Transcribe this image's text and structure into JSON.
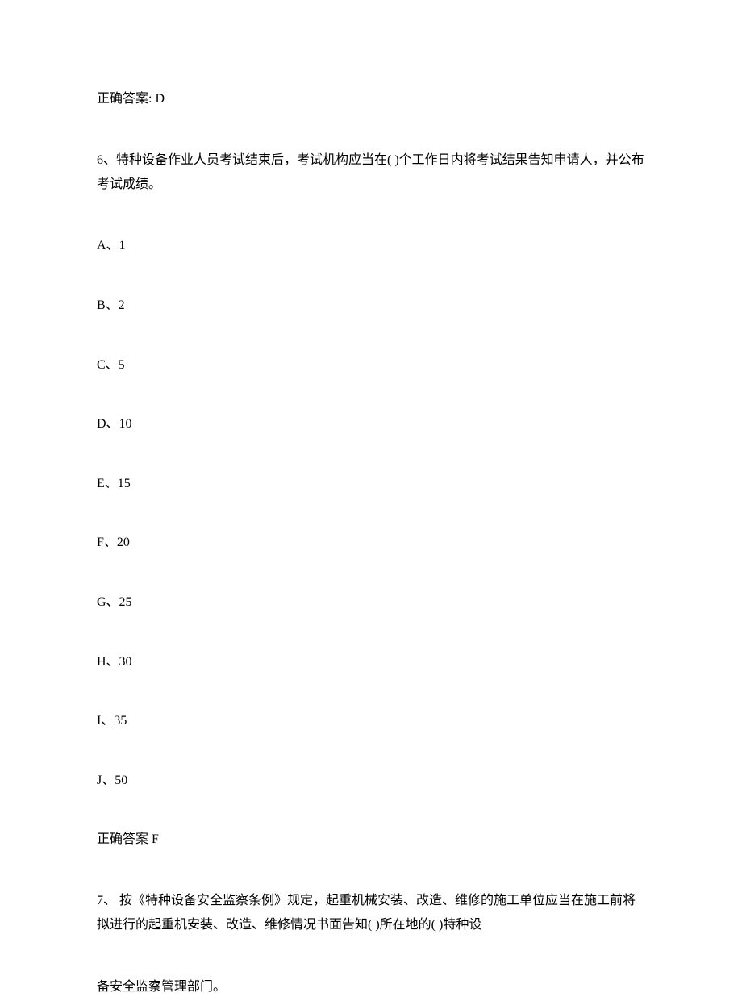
{
  "answer_prev": "正确答案: D",
  "q6": {
    "text": "6、特种设备作业人员考试结束后，考试机构应当在( )个工作日内将考试结果告知申请人，并公布考试成绩。",
    "options": {
      "a": "A、1",
      "b": "B、2",
      "c": "C、5",
      "d": "D、10",
      "e": "E、15",
      "f": "F、20",
      "g": "G、25",
      "h": "H、30",
      "i": "I、35",
      "j": "J、50"
    },
    "answer": "正确答案 F"
  },
  "q7": {
    "text_part1": "7、 按《特种设备安全监察条例》规定，起重机械安装、改造、维修的施工单位应当在施工前将拟进行的起重机安装、改造、维修情况书面告知( )所在地的( )特种设",
    "text_part2": "备安全监察管理部门。"
  }
}
